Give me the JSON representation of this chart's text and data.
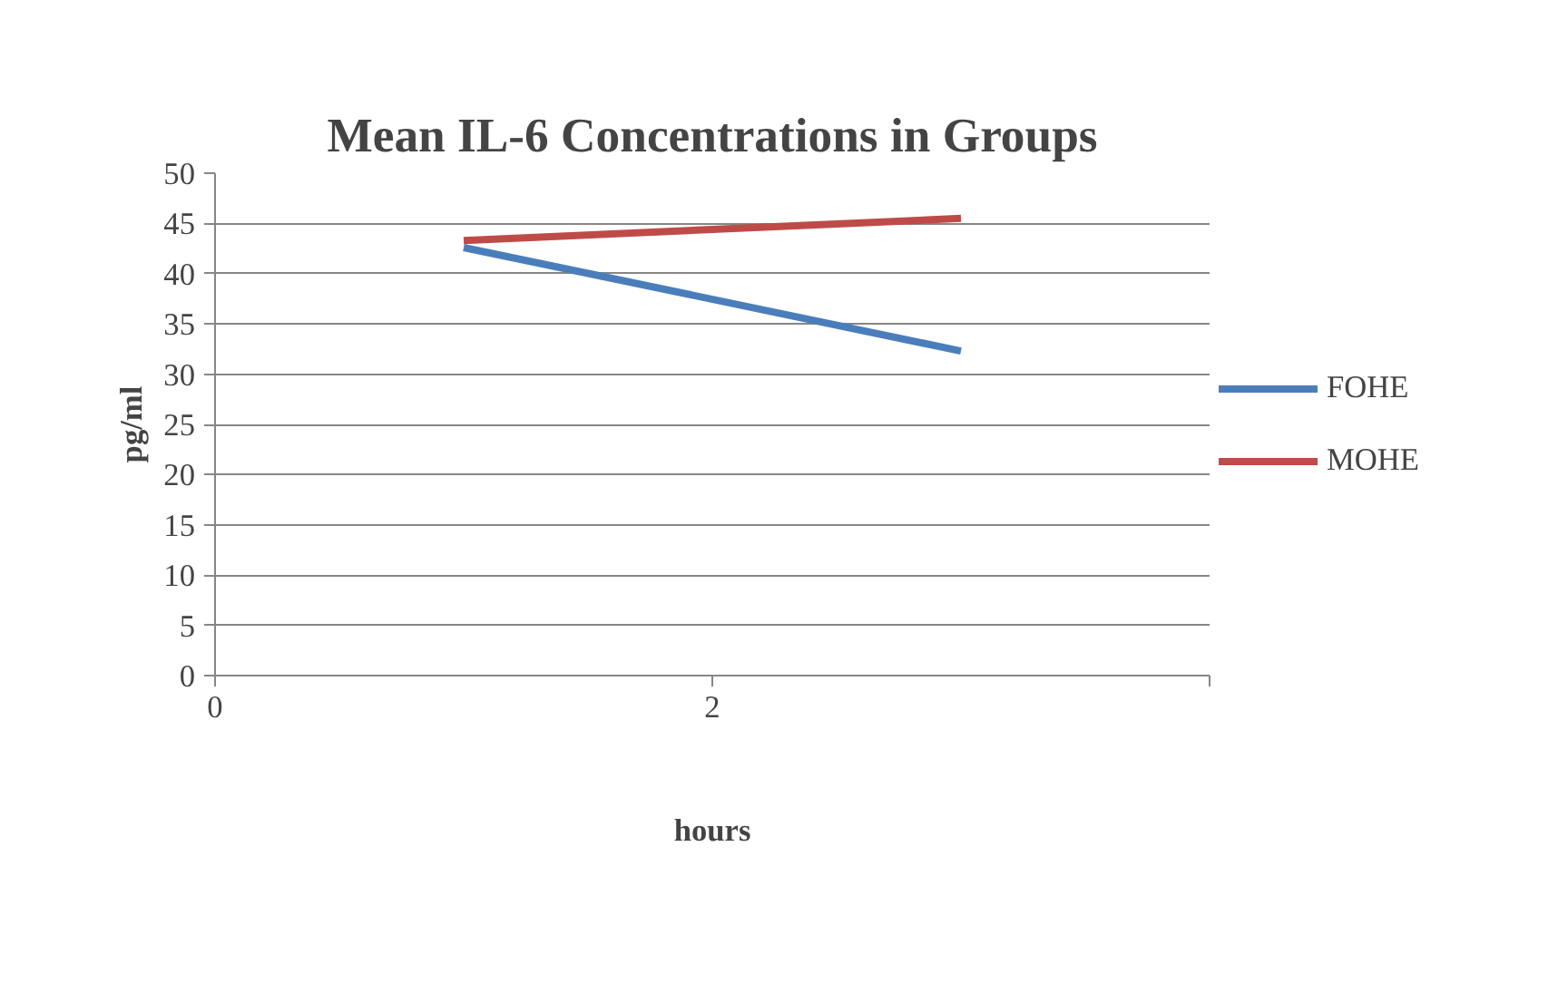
{
  "chart_data": {
    "type": "line",
    "title": "Mean IL-6 Concentrations in Groups",
    "xlabel": "hours",
    "ylabel": "pg/ml",
    "series": [
      {
        "name": "FOHE",
        "color": "#4a7ebb",
        "values": [
          42.6,
          32.3
        ]
      },
      {
        "name": "MOHE",
        "color": "#be4b48",
        "values": [
          43.3,
          45.5
        ]
      }
    ],
    "x": [
      1,
      3
    ],
    "xlim": [
      0,
      4
    ],
    "xticks": [
      0,
      2,
      {
        "value": 4,
        "label": null
      }
    ],
    "ylim": [
      0,
      50
    ],
    "yticks": [
      0,
      5,
      10,
      15,
      20,
      25,
      30,
      35,
      40,
      45,
      50
    ],
    "grid": "y",
    "legend": "right",
    "marker": "none",
    "line_style": "solid"
  }
}
